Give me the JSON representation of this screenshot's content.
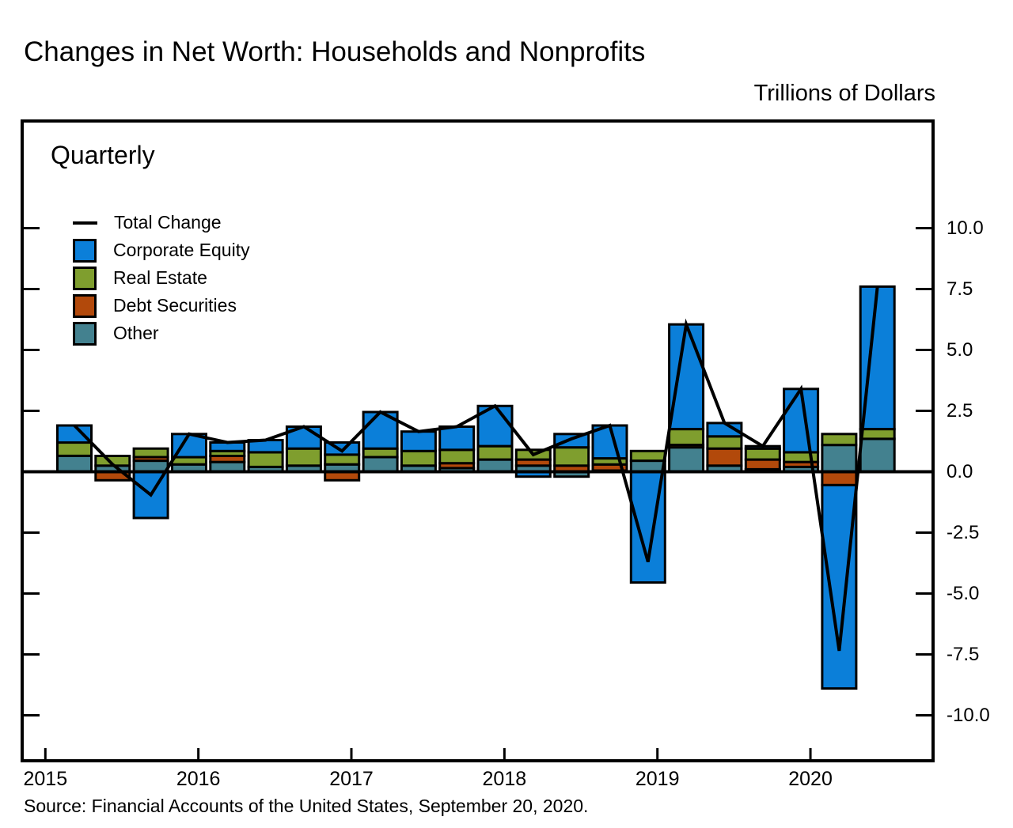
{
  "title": "Changes in Net Worth: Households and Nonprofits",
  "units_label": "Trillions of Dollars",
  "panel_label": "Quarterly",
  "source_note": "Source: Financial Accounts of the United States, September 20, 2020.",
  "legend": {
    "line_label": "Total Change",
    "line_color": "#000000",
    "items": [
      {
        "key": "ce",
        "label": "Corporate Equity",
        "color": "#0b7fd9"
      },
      {
        "key": "re",
        "label": "Real Estate",
        "color": "#7f9e2e"
      },
      {
        "key": "ds",
        "label": "Debt Securities",
        "color": "#b2490b"
      },
      {
        "key": "other",
        "label": "Other",
        "color": "#43818f"
      }
    ]
  },
  "axis": {
    "y_tick_labels": [
      "10.0",
      "7.5",
      "5.0",
      "2.5",
      "0.0",
      "-2.5",
      "-5.0",
      "-7.5",
      "-10.0"
    ],
    "y_tick_values": [
      10,
      7.5,
      5,
      2.5,
      0,
      -2.5,
      -5,
      -7.5,
      -10
    ],
    "x_tick_labels": [
      "2015",
      "2016",
      "2017",
      "2018",
      "2019",
      "2020"
    ]
  },
  "chart_data": {
    "type": "stacked-bar+line",
    "title": "Changes in Net Worth: Households and Nonprofits",
    "ylabel": "Trillions of Dollars",
    "frequency": "Quarterly",
    "ylim": [
      -10,
      10
    ],
    "grid": false,
    "legend_position": "top-left",
    "x": [
      "2015Q1",
      "2015Q2",
      "2015Q3",
      "2015Q4",
      "2016Q1",
      "2016Q2",
      "2016Q3",
      "2016Q4",
      "2017Q1",
      "2017Q2",
      "2017Q3",
      "2017Q4",
      "2018Q1",
      "2018Q2",
      "2018Q3",
      "2018Q4",
      "2019Q1",
      "2019Q2",
      "2019Q3",
      "2019Q4",
      "2020Q1",
      "2020Q2"
    ],
    "series": [
      {
        "name": "Corporate Equity",
        "key": "ce",
        "values": [
          0.7,
          0.0,
          -1.9,
          0.95,
          0.35,
          0.5,
          0.9,
          0.5,
          1.5,
          0.8,
          0.95,
          1.65,
          -0.2,
          0.55,
          1.35,
          -4.55,
          4.3,
          0.55,
          0.1,
          2.6,
          -8.35,
          5.85
        ]
      },
      {
        "name": "Real Estate",
        "key": "re",
        "values": [
          0.55,
          0.4,
          0.35,
          0.3,
          0.2,
          0.6,
          0.7,
          0.4,
          0.35,
          0.6,
          0.55,
          0.55,
          0.4,
          0.75,
          0.25,
          0.4,
          0.65,
          0.5,
          0.45,
          0.4,
          0.45,
          0.4
        ]
      },
      {
        "name": "Debt Securities",
        "key": "ds",
        "values": [
          0.0,
          -0.35,
          0.15,
          0.0,
          0.25,
          0.0,
          0.0,
          -0.35,
          0.0,
          0.0,
          0.2,
          0.0,
          0.25,
          0.25,
          0.25,
          0.0,
          0.1,
          0.7,
          0.4,
          0.2,
          -0.55,
          0.0
        ]
      },
      {
        "name": "Other",
        "key": "other",
        "values": [
          0.65,
          0.25,
          0.45,
          0.3,
          0.4,
          0.2,
          0.25,
          0.3,
          0.6,
          0.25,
          0.15,
          0.5,
          0.25,
          -0.2,
          0.05,
          0.45,
          1.0,
          0.25,
          0.1,
          0.2,
          1.1,
          1.35
        ]
      }
    ],
    "line": {
      "name": "Total Change",
      "values": [
        1.9,
        0.3,
        -0.95,
        1.55,
        1.2,
        1.3,
        1.85,
        0.85,
        2.45,
        1.65,
        1.85,
        2.7,
        0.7,
        1.35,
        1.9,
        -3.7,
        6.05,
        2.0,
        1.05,
        3.4,
        -7.35,
        7.6
      ]
    }
  }
}
